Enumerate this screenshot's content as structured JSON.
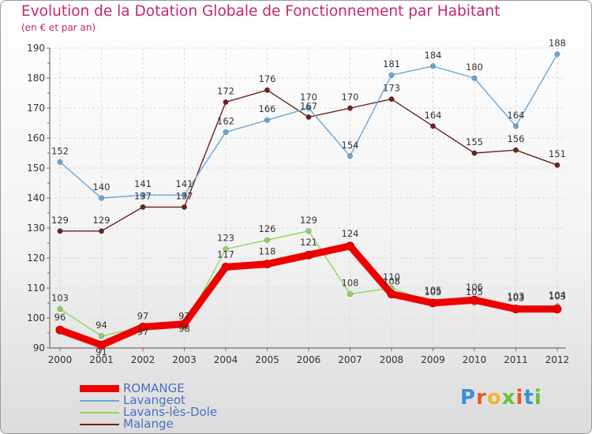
{
  "title": "Evolution de la Dotation Globale de Fonctionnement par Habitant",
  "subtitle": "(en € et par an)",
  "brand": {
    "letters": [
      "P",
      "r",
      "o",
      "x",
      "i",
      "t",
      "i"
    ],
    "colors": [
      "#3a8fd6",
      "#e8572a",
      "#f2b531",
      "#6cbf3c",
      "#e8572a",
      "#3a8fd6",
      "#6cbf3c"
    ]
  },
  "chart_data": {
    "type": "line",
    "x": [
      "2000",
      "2001",
      "2002",
      "2003",
      "2004",
      "2005",
      "2006",
      "2007",
      "2008",
      "2009",
      "2010",
      "2011",
      "2012"
    ],
    "ylim": [
      90,
      190
    ],
    "yticks": [
      "90",
      "100",
      "110",
      "120",
      "130",
      "140",
      "150",
      "160",
      "170",
      "180",
      "190"
    ],
    "grid": true,
    "legend_position": "bottom-left",
    "series": [
      {
        "name": "ROMANGE",
        "color": "#ee0000",
        "values": [
          96,
          91,
          97,
          98,
          117,
          118,
          121,
          124,
          108,
          105,
          106,
          103,
          103
        ]
      },
      {
        "name": "Lavangeot",
        "color": "#6aa6d6",
        "values": [
          152,
          140,
          141,
          141,
          162,
          166,
          170,
          154,
          181,
          184,
          180,
          164,
          188
        ]
      },
      {
        "name": "Lavans-lès-Dole",
        "color": "#8fd65a",
        "values": [
          103,
          94,
          97,
          97,
          123,
          126,
          129,
          108,
          110,
          105,
          105,
          103,
          104
        ]
      },
      {
        "name": "Malange",
        "color": "#6e1f1f",
        "values": [
          129,
          129,
          137,
          137,
          172,
          176,
          167,
          170,
          173,
          164,
          155,
          156,
          151
        ]
      }
    ]
  }
}
